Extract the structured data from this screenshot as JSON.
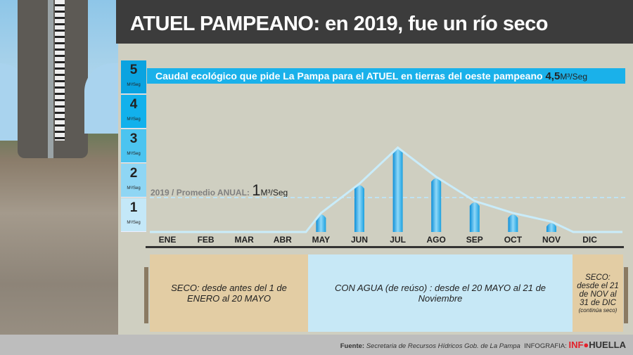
{
  "title": "ATUEL PAMPEANO: en 2019, fue un río seco",
  "levels": [
    {
      "n": "5",
      "u": "M³/Seg",
      "c": "#0aa3e0"
    },
    {
      "n": "4",
      "u": "M³/Seg",
      "c": "#12b1ec"
    },
    {
      "n": "3",
      "u": "M³/Seg",
      "c": "#4cc4f0"
    },
    {
      "n": "2",
      "u": "M³/Seg",
      "c": "#8fd6f4"
    },
    {
      "n": "1",
      "u": "M³/Seg",
      "c": "#c4e8f8"
    }
  ],
  "eco": {
    "text": "Caudal ecológico que pide La Pampa para el ATUEL en tierras del oeste pampeano",
    "value": "4,5",
    "unit": "M³/Seg"
  },
  "avg": {
    "label": "2019 / Promedio ANUAL:",
    "value": "1",
    "unit": "M³/Seg"
  },
  "chart_data": {
    "type": "bar",
    "categories": [
      "ENE",
      "FEB",
      "MAR",
      "ABR",
      "MAY",
      "JUN",
      "JUL",
      "AGO",
      "SEP",
      "OCT",
      "NOV",
      "DIC"
    ],
    "values": [
      0,
      0,
      0,
      0,
      0.55,
      1.4,
      2.45,
      1.6,
      0.9,
      0.55,
      0.3,
      0
    ],
    "ylim": [
      0,
      5
    ],
    "ylabel": "M³/Seg",
    "reference_lines": [
      {
        "label": "Promedio ANUAL",
        "value": 1
      },
      {
        "label": "Caudal ecológico",
        "value": 4.5
      }
    ]
  },
  "panels": [
    {
      "text": "SECO: desde antes del 1 de ENERO al 20 MAYO",
      "color": "#e3cda4"
    },
    {
      "text": "CON AGUA (de reúso) : desde el 20 MAYO al 21 de Noviembre",
      "color": "#c7e8f6"
    },
    {
      "text": "SECO: desde el 21 de NOV al 31 de DIC",
      "note": "(continúa seco)",
      "color": "#e3cda4"
    }
  ],
  "footer": {
    "fuente_label": "Fuente:",
    "fuente": "Secretaria de Recursos Hídricos Gob. de La Pampa",
    "infografia": "INFOGRAFIA:",
    "brand1": "INF",
    "brand2": "HUELLA"
  }
}
